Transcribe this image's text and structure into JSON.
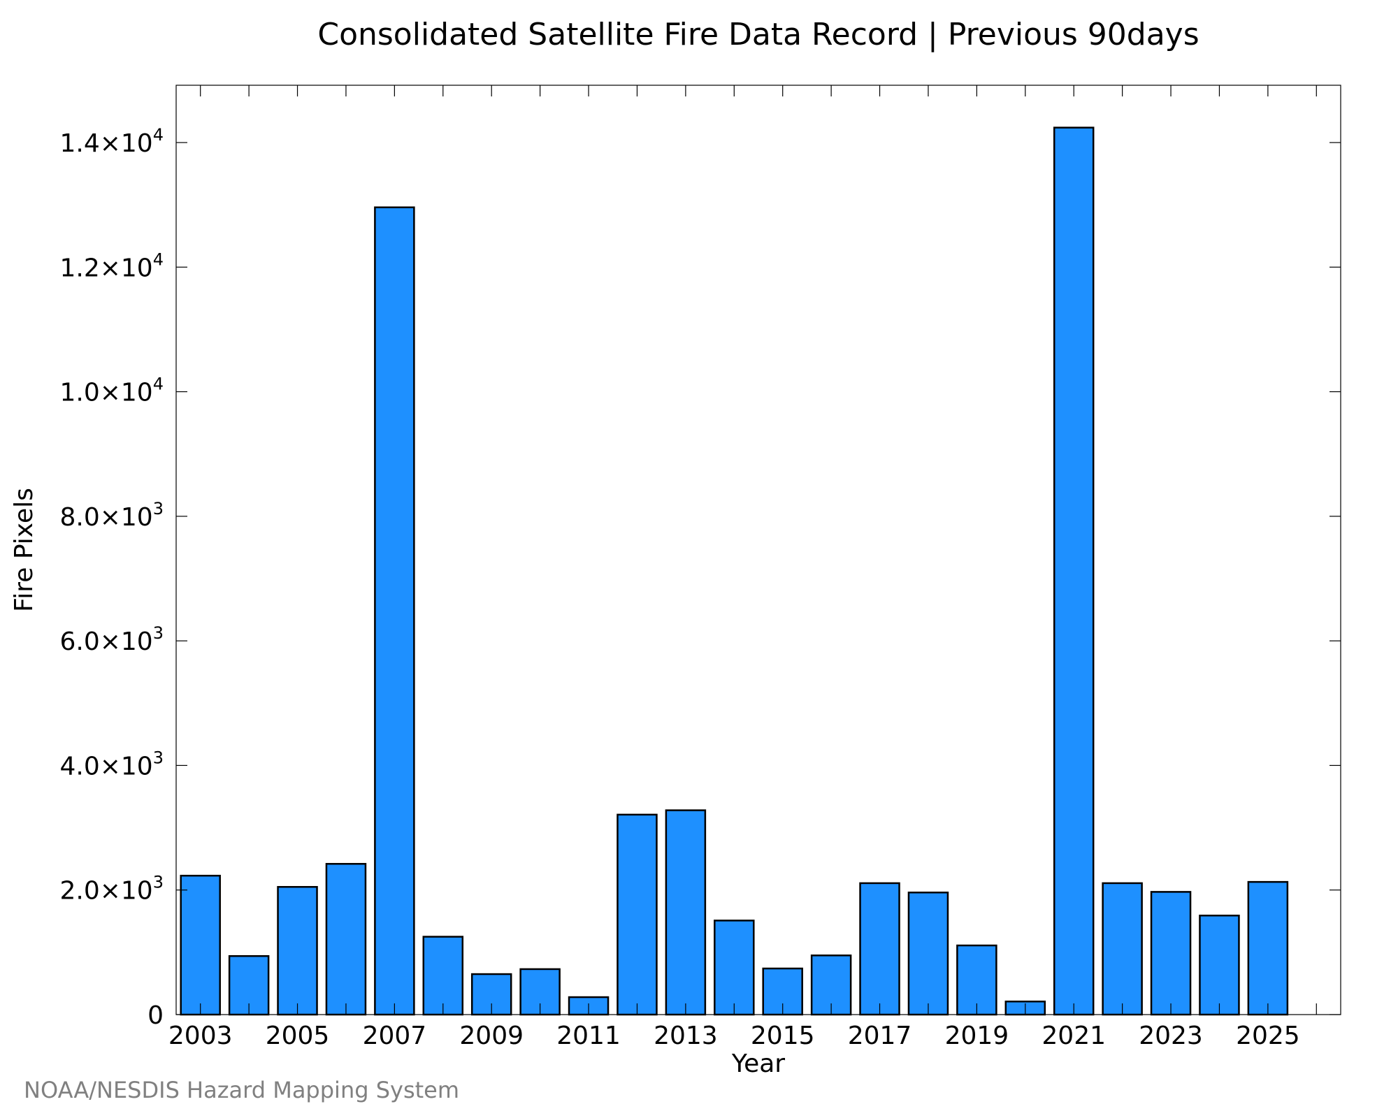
{
  "credit": "NOAA/NESDIS Hazard Mapping System",
  "colors": {
    "bar_fill": "#1e90ff",
    "bar_stroke": "#000000",
    "credit_text": "#808080"
  },
  "chart_data": {
    "type": "bar",
    "title": "Consolidated Satellite Fire Data Record | Previous 90days",
    "xlabel": "Year",
    "ylabel": "Fire Pixels",
    "categories": [
      2003,
      2004,
      2005,
      2006,
      2007,
      2008,
      2009,
      2010,
      2011,
      2012,
      2013,
      2014,
      2015,
      2016,
      2017,
      2018,
      2019,
      2020,
      2021,
      2022,
      2023,
      2024,
      2025
    ],
    "values": [
      2230,
      940,
      2050,
      2420,
      12960,
      1250,
      650,
      730,
      280,
      3210,
      3280,
      1510,
      740,
      950,
      2110,
      1960,
      1110,
      210,
      14240,
      2110,
      1970,
      1590,
      2130
    ],
    "xlim": [
      2002.5,
      2026.5
    ],
    "ylim": [
      0,
      14920
    ],
    "x_ticks": [
      "2003",
      "2005",
      "2007",
      "2009",
      "2011",
      "2013",
      "2015",
      "2017",
      "2019",
      "2021",
      "2023",
      "2025"
    ],
    "y_ticks": [
      {
        "value": 0,
        "mantissa": "0",
        "exp": ""
      },
      {
        "value": 2000,
        "mantissa": "2.0×10",
        "exp": "3"
      },
      {
        "value": 4000,
        "mantissa": "4.0×10",
        "exp": "3"
      },
      {
        "value": 6000,
        "mantissa": "6.0×10",
        "exp": "3"
      },
      {
        "value": 8000,
        "mantissa": "8.0×10",
        "exp": "3"
      },
      {
        "value": 10000,
        "mantissa": "1.0×10",
        "exp": "4"
      },
      {
        "value": 12000,
        "mantissa": "1.2×10",
        "exp": "4"
      },
      {
        "value": 14000,
        "mantissa": "1.4×10",
        "exp": "4"
      }
    ],
    "grid": false,
    "legend": "none"
  }
}
